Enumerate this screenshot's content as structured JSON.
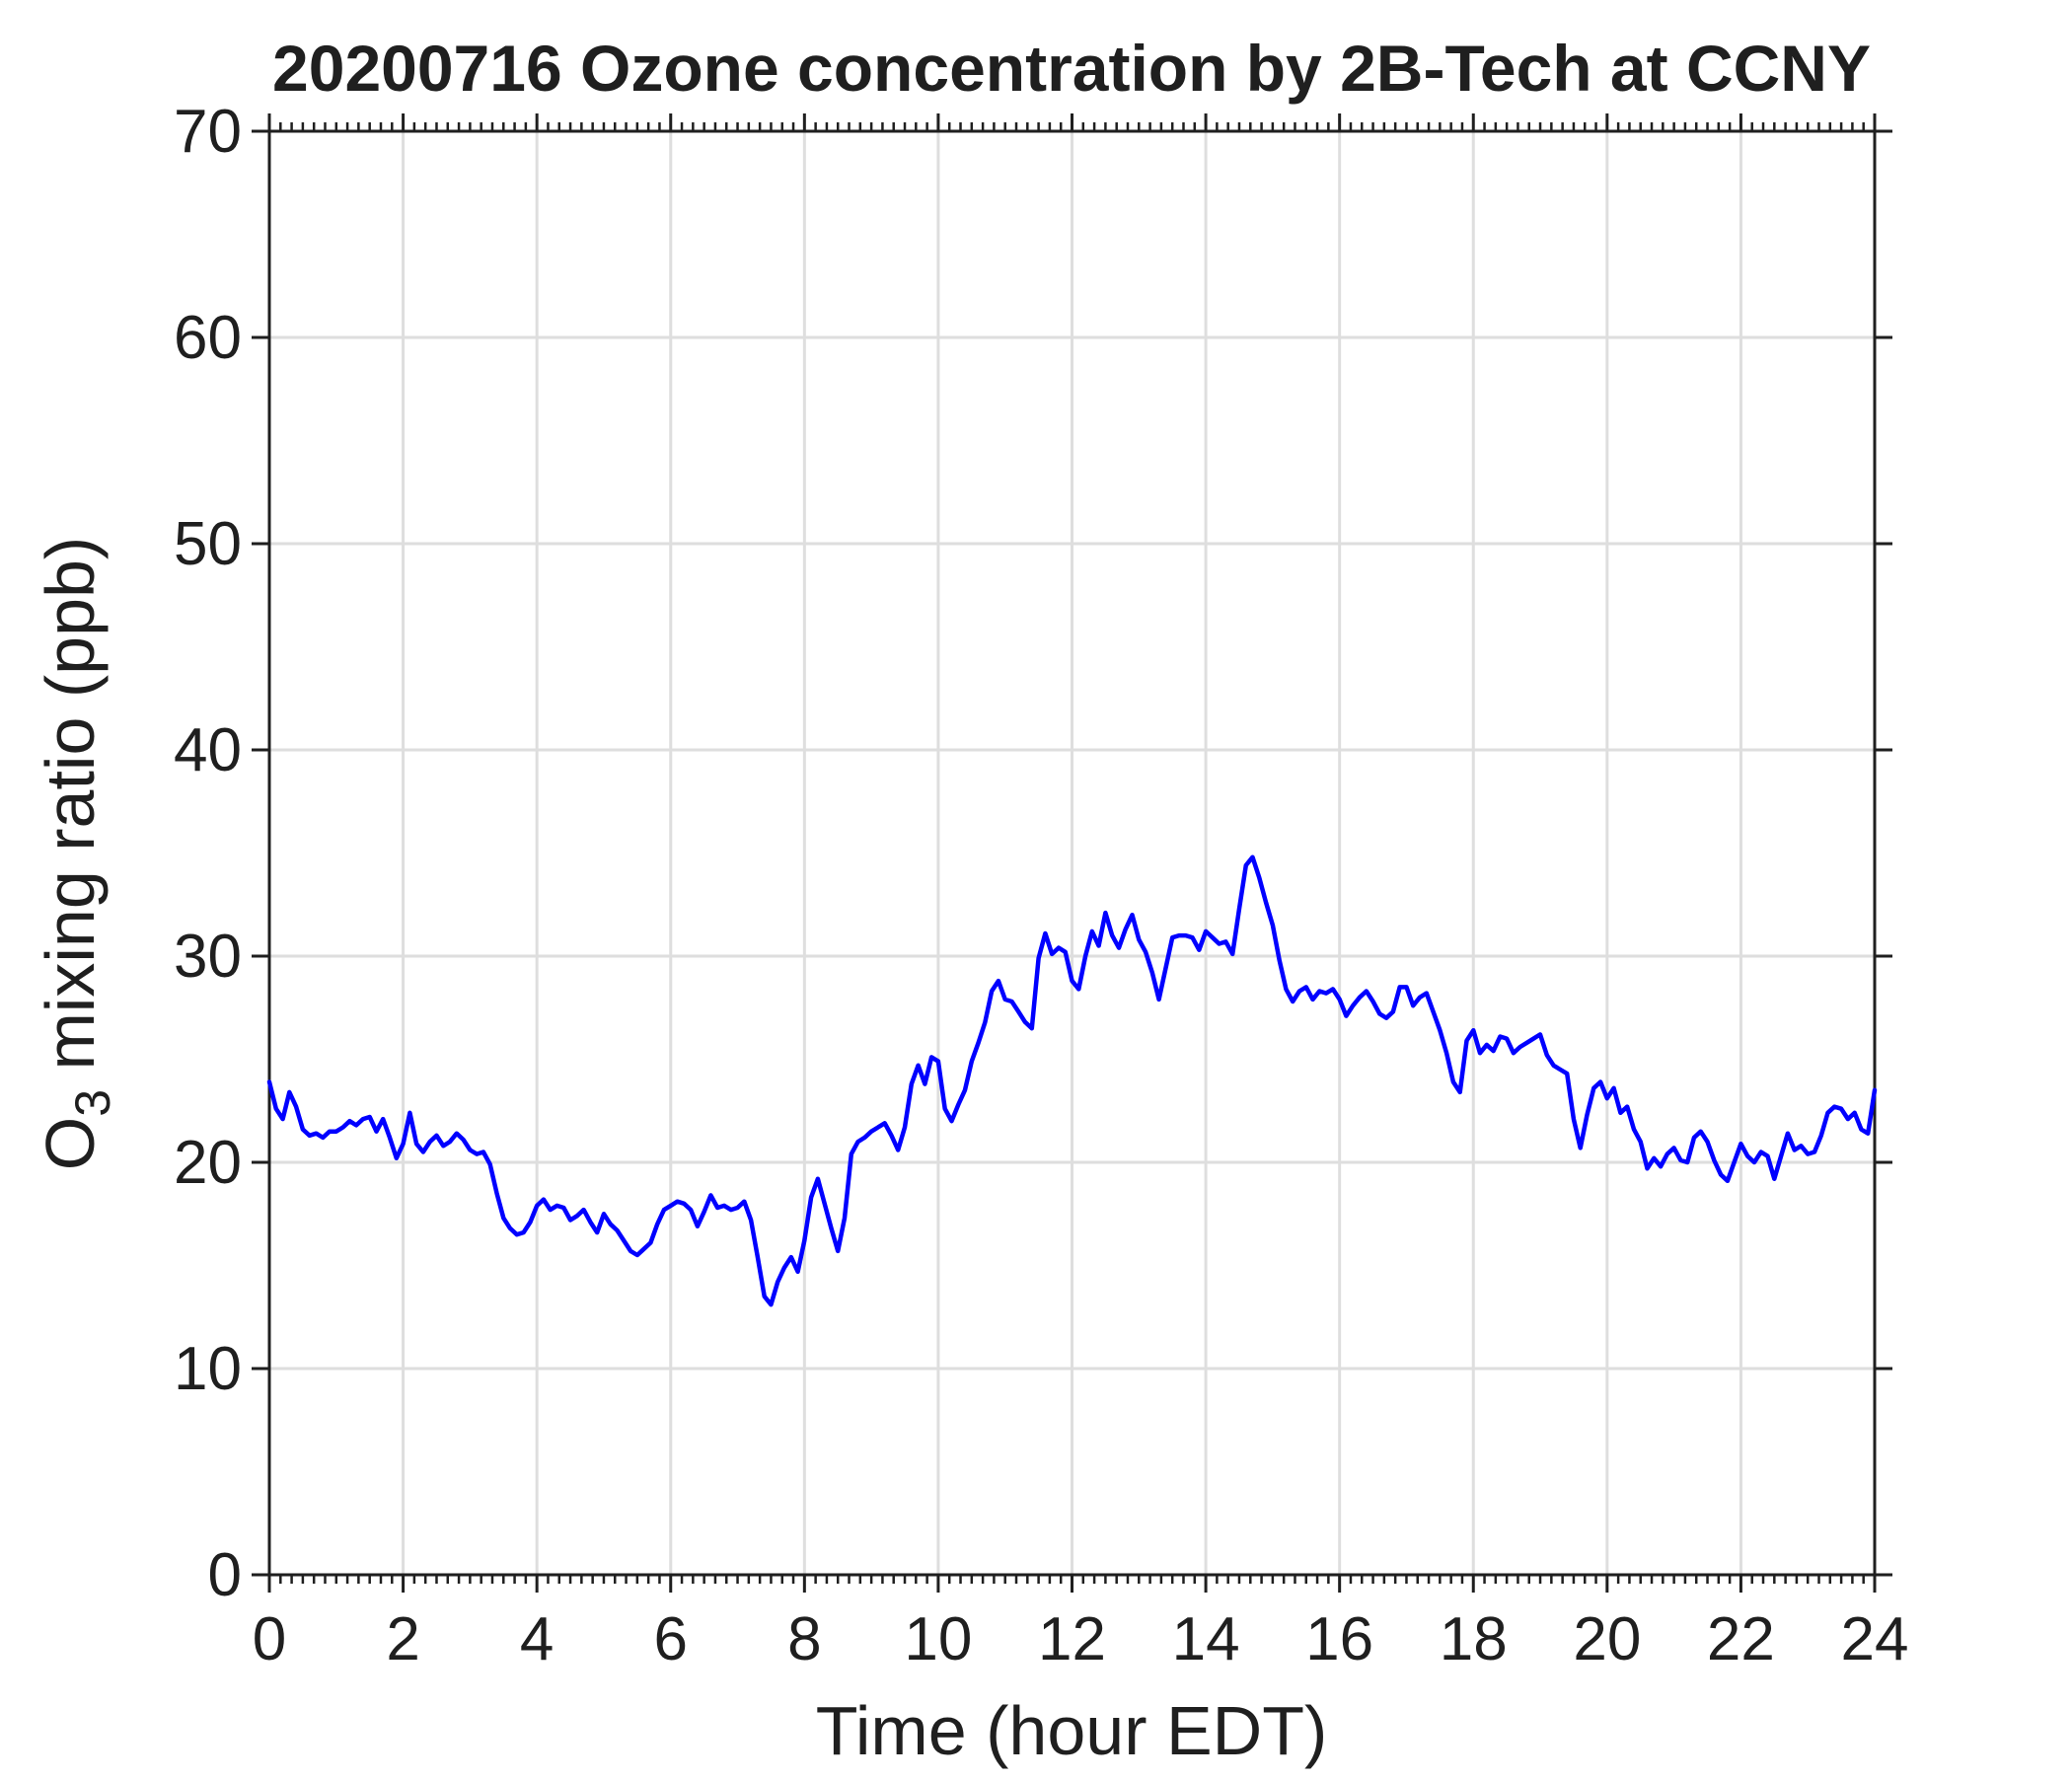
{
  "page": {
    "background": "#ffffff"
  },
  "chart_data": {
    "type": "line",
    "title": "20200716 Ozone concentration by 2B-Tech at CCNY",
    "xlabel": "Time (hour EDT)",
    "ylabel_parts": {
      "pre": "O",
      "sub": "3",
      "post": " mixing ratio (ppb)"
    },
    "xlim": [
      0,
      24
    ],
    "ylim": [
      0,
      70
    ],
    "x_ticks": [
      0,
      2,
      4,
      6,
      8,
      10,
      12,
      14,
      16,
      18,
      20,
      22,
      24
    ],
    "y_ticks": [
      0,
      10,
      20,
      30,
      40,
      50,
      60,
      70
    ],
    "x_minors_per_interval": 12,
    "grid": true,
    "legend": false,
    "colors": {
      "line": "#0000FF",
      "grid": "#DEDEDE",
      "frame": "#1f1f1f",
      "tick": "#1f1f1f",
      "text": "#1f1f1f",
      "background": "#ffffff"
    },
    "series": [
      {
        "name": "O3 mixing ratio",
        "x_start": 0,
        "x_step": 0.1,
        "values": [
          23.9,
          22.6,
          22.1,
          23.4,
          22.7,
          21.6,
          21.3,
          21.4,
          21.2,
          21.5,
          21.5,
          21.7,
          22.0,
          21.8,
          22.1,
          22.2,
          21.5,
          22.1,
          21.2,
          20.2,
          20.9,
          22.4,
          20.9,
          20.5,
          21.0,
          21.3,
          20.8,
          21.0,
          21.4,
          21.1,
          20.6,
          20.4,
          20.5,
          19.9,
          18.5,
          17.3,
          16.8,
          16.5,
          16.6,
          17.1,
          17.9,
          18.2,
          17.7,
          17.9,
          17.8,
          17.2,
          17.4,
          17.7,
          17.1,
          16.6,
          17.5,
          17.0,
          16.7,
          16.2,
          15.7,
          15.5,
          15.8,
          16.1,
          17.0,
          17.7,
          17.9,
          18.1,
          18.0,
          17.7,
          16.9,
          17.6,
          18.4,
          17.8,
          17.9,
          17.7,
          17.8,
          18.1,
          17.2,
          15.4,
          13.5,
          13.1,
          14.2,
          14.9,
          15.4,
          14.7,
          16.2,
          18.3,
          19.2,
          18.0,
          16.8,
          15.7,
          17.3,
          20.4,
          21.0,
          21.2,
          21.5,
          21.7,
          21.9,
          21.3,
          20.6,
          21.7,
          23.8,
          24.7,
          23.8,
          25.1,
          24.9,
          22.6,
          22.0,
          22.8,
          23.5,
          24.9,
          25.8,
          26.8,
          28.3,
          28.8,
          27.9,
          27.8,
          27.3,
          26.8,
          26.5,
          29.9,
          31.1,
          30.1,
          30.4,
          30.2,
          28.8,
          28.4,
          30.0,
          31.2,
          30.5,
          32.1,
          31.0,
          30.4,
          31.3,
          32.0,
          30.8,
          30.2,
          29.2,
          27.9,
          29.4,
          30.9,
          31.0,
          31.0,
          30.9,
          30.3,
          31.2,
          30.9,
          30.6,
          30.7,
          30.1,
          32.3,
          34.4,
          34.8,
          33.8,
          32.6,
          31.5,
          29.8,
          28.4,
          27.8,
          28.3,
          28.5,
          27.9,
          28.3,
          28.2,
          28.4,
          27.9,
          27.1,
          27.6,
          28.0,
          28.3,
          27.8,
          27.2,
          27.0,
          27.3,
          28.5,
          28.5,
          27.6,
          28.0,
          28.2,
          27.3,
          26.4,
          25.3,
          23.9,
          23.4,
          25.9,
          26.4,
          25.3,
          25.7,
          25.4,
          26.1,
          26.0,
          25.3,
          25.6,
          25.8,
          26.0,
          26.2,
          25.2,
          24.7,
          24.5,
          24.3,
          22.1,
          20.7,
          22.3,
          23.6,
          23.9,
          23.1,
          23.6,
          22.4,
          22.7,
          21.6,
          21.0,
          19.7,
          20.2,
          19.8,
          20.4,
          20.7,
          20.1,
          20.0,
          21.2,
          21.5,
          21.0,
          20.1,
          19.4,
          19.1,
          20.0,
          20.9,
          20.3,
          20.0,
          20.5,
          20.3,
          19.2,
          20.3,
          21.4,
          20.6,
          20.8,
          20.4,
          20.5,
          21.3,
          22.4,
          22.7,
          22.6,
          22.1,
          22.4,
          21.6,
          21.4,
          23.5
        ]
      }
    ]
  }
}
